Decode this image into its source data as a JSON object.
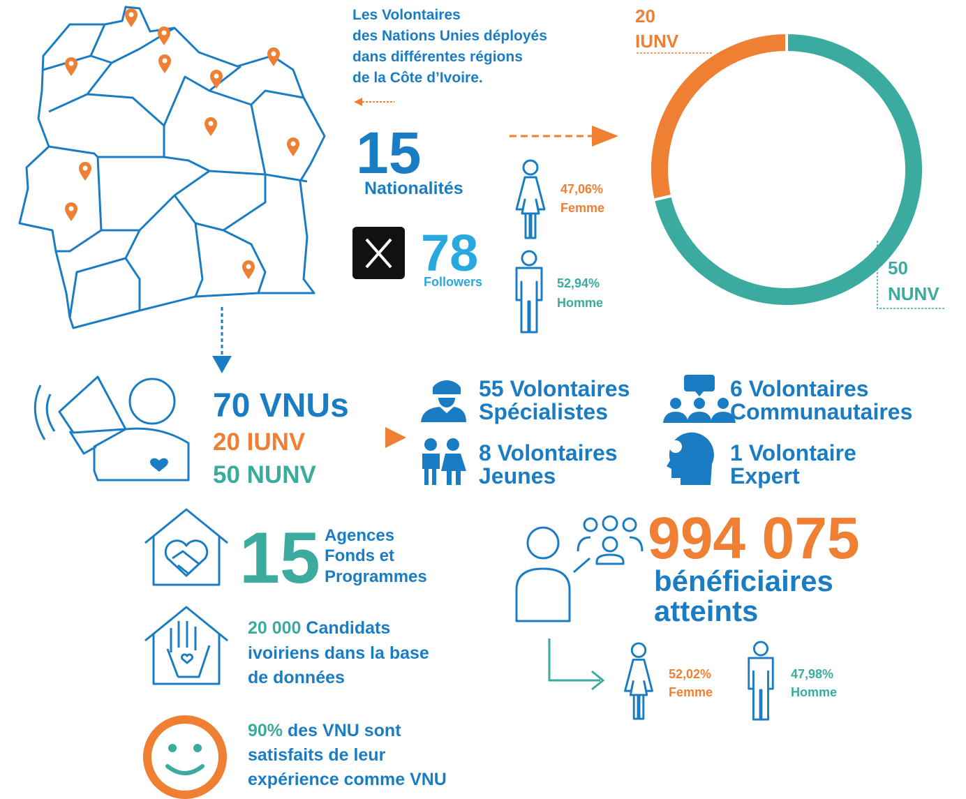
{
  "map": {
    "caption": [
      "Les Volontaires",
      "des Nations Unies déployés",
      "dans différentes régions",
      "de la Côte d’Ivoire."
    ]
  },
  "nationalities": {
    "value": "15",
    "label": "Nationalités"
  },
  "twitter": {
    "value": "78",
    "label": "Followers"
  },
  "gender_volunteers": {
    "female": {
      "pct": "47,06%",
      "label": "Femme"
    },
    "male": {
      "pct": "52,94%",
      "label": "Homme"
    }
  },
  "chart_data": {
    "type": "pie",
    "donut": true,
    "categories": [
      "IUNV",
      "NUNV"
    ],
    "values": [
      20,
      50
    ],
    "colors": [
      "#ee7f33",
      "#3aab9e"
    ]
  },
  "vnus": {
    "total": "70 VNUs",
    "iunv": "20 IUNV",
    "nunv": "50 NUNV"
  },
  "volunteer_types": [
    {
      "lines": [
        "55 Volontaires",
        "Spécialistes"
      ]
    },
    {
      "lines": [
        "8 Volontaires",
        "Jeunes"
      ]
    },
    {
      "lines": [
        "6 Volontaires",
        "Communautaires"
      ]
    },
    {
      "lines": [
        "1 Volontaire",
        "Expert"
      ]
    }
  ],
  "agencies": {
    "value": "15",
    "lines": [
      "Agences",
      "Fonds et",
      "Programmes"
    ]
  },
  "candidates": {
    "highlight": "20 000",
    "lines": [
      "Candidats",
      "ivoiriens dans la base",
      "de données"
    ]
  },
  "satisfaction": {
    "highlight": "90%",
    "lines": [
      "des VNU sont",
      "satisfaits de leur",
      "expérience comme VNU"
    ]
  },
  "beneficiaries": {
    "value": "994 075",
    "lines": [
      "bénéficiaires",
      "atteints"
    ]
  },
  "gender_beneficiaries": {
    "female": {
      "pct": "52,02%",
      "label": "Femme"
    },
    "male": {
      "pct": "47,98%",
      "label": "Homme"
    }
  }
}
